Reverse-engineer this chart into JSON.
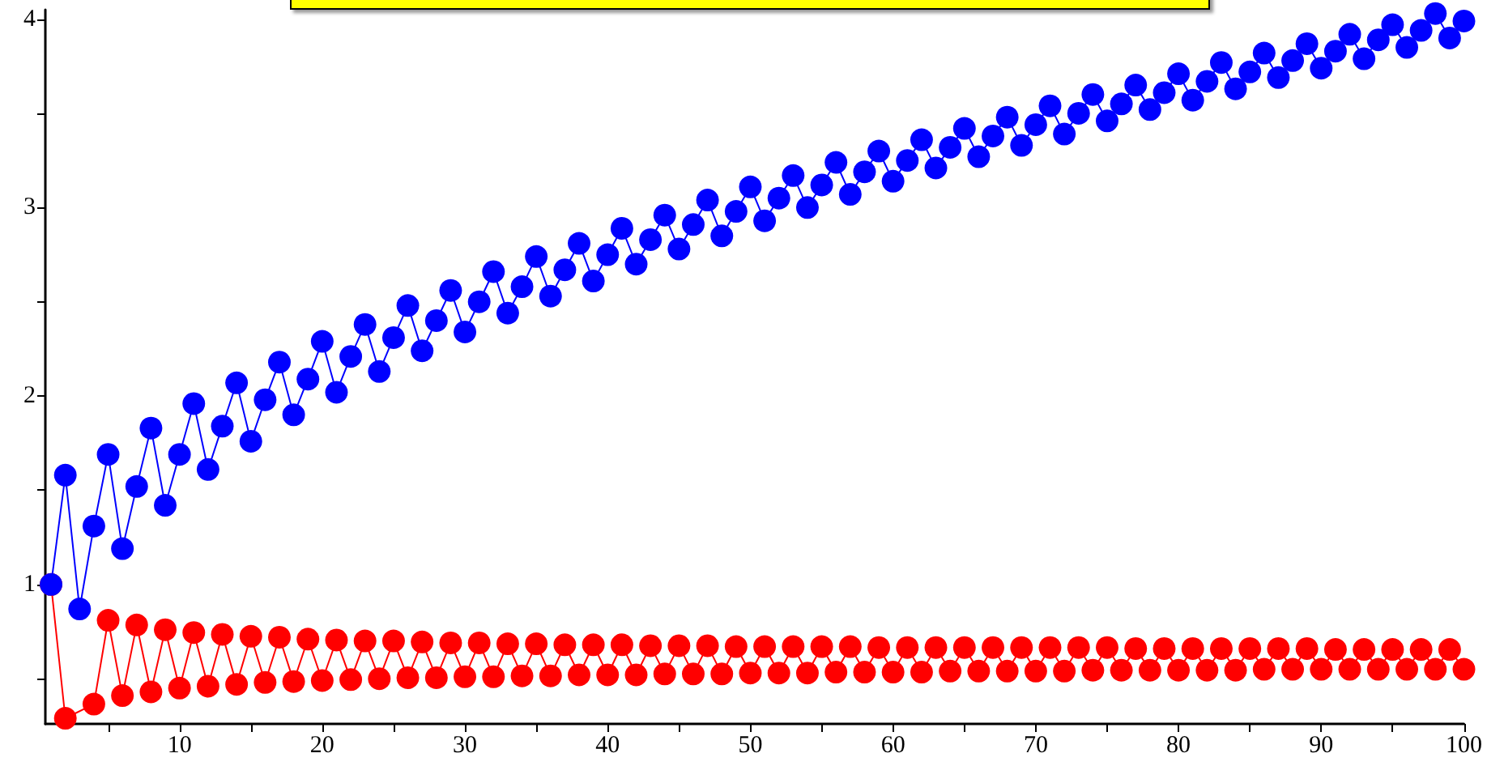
{
  "chart_data": {
    "type": "line",
    "marker": "circle",
    "line_style": "solid",
    "grid": false,
    "x": [
      1,
      2,
      3,
      4,
      5,
      6,
      7,
      8,
      9,
      10,
      11,
      12,
      13,
      14,
      15,
      16,
      17,
      18,
      19,
      20,
      21,
      22,
      23,
      24,
      25,
      26,
      27,
      28,
      29,
      30,
      31,
      32,
      33,
      34,
      35,
      36,
      37,
      38,
      39,
      40,
      41,
      42,
      43,
      44,
      45,
      46,
      47,
      48,
      49,
      50,
      51,
      52,
      53,
      54,
      55,
      56,
      57,
      58,
      59,
      60,
      61,
      62,
      63,
      64,
      65,
      66,
      67,
      68,
      69,
      70,
      71,
      72,
      73,
      74,
      75,
      76,
      77,
      78,
      79,
      80,
      81,
      82,
      83,
      84,
      85,
      86,
      87,
      88,
      89,
      90,
      91,
      92,
      93,
      94,
      95,
      96,
      97,
      98,
      99,
      100
    ],
    "xlim": [
      0.6,
      100
    ],
    "xticks": [
      {
        "value": 5,
        "label": null
      },
      10,
      {
        "value": 15,
        "label": null
      },
      20,
      {
        "value": 25,
        "label": null
      },
      30,
      {
        "value": 35,
        "label": null
      },
      40,
      {
        "value": 45,
        "label": null
      },
      50,
      {
        "value": 55,
        "label": null
      },
      60,
      {
        "value": 65,
        "label": null
      },
      70,
      {
        "value": 75,
        "label": null
      },
      80,
      {
        "value": 85,
        "label": null
      },
      90,
      {
        "value": 95,
        "label": null
      },
      100
    ],
    "ylim": [
      0.26,
      4.05
    ],
    "yticks": [
      {
        "value": 0.5,
        "label": null
      },
      1,
      {
        "value": 1.5,
        "label": null
      },
      2,
      {
        "value": 2.5,
        "label": null
      },
      3,
      {
        "value": 3.5,
        "label": null
      },
      4
    ],
    "series": [
      {
        "color": "#ff0000",
        "values": [
          1,
          0.29,
          null,
          0.365,
          0.81,
          0.41,
          0.785,
          0.43,
          0.76,
          0.45,
          0.745,
          0.46,
          0.735,
          0.47,
          0.725,
          0.48,
          0.72,
          0.485,
          0.71,
          0.49,
          0.705,
          0.495,
          0.7,
          0.5,
          0.7,
          0.505,
          0.695,
          0.505,
          0.69,
          0.51,
          0.69,
          0.51,
          0.685,
          0.515,
          0.685,
          0.515,
          0.68,
          0.52,
          0.68,
          0.52,
          0.68,
          0.52,
          0.675,
          0.525,
          0.675,
          0.525,
          0.675,
          0.525,
          0.67,
          0.53,
          0.67,
          0.53,
          0.67,
          0.53,
          0.67,
          0.535,
          0.67,
          0.535,
          0.665,
          0.535,
          0.665,
          0.535,
          0.665,
          0.54,
          0.665,
          0.54,
          0.665,
          0.54,
          0.665,
          0.54,
          0.665,
          0.54,
          0.665,
          0.545,
          0.665,
          0.545,
          0.66,
          0.545,
          0.66,
          0.545,
          0.66,
          0.545,
          0.66,
          0.545,
          0.66,
          0.55,
          0.66,
          0.55,
          0.66,
          0.55,
          0.655,
          0.55,
          0.655,
          0.55,
          0.655,
          0.55,
          0.655,
          0.55,
          0.655,
          0.55
        ]
      },
      {
        "color": "#0000ff",
        "values": [
          1.0,
          1.58,
          0.87,
          1.31,
          1.69,
          1.19,
          1.52,
          1.83,
          1.42,
          1.69,
          1.96,
          1.61,
          1.84,
          2.07,
          1.76,
          1.98,
          2.18,
          1.9,
          2.09,
          2.29,
          2.02,
          2.21,
          2.38,
          2.13,
          2.31,
          2.48,
          2.24,
          2.4,
          2.56,
          2.34,
          2.5,
          2.66,
          2.44,
          2.58,
          2.74,
          2.53,
          2.67,
          2.81,
          2.61,
          2.75,
          2.89,
          2.7,
          2.83,
          2.96,
          2.78,
          2.91,
          3.04,
          2.85,
          2.98,
          3.11,
          2.93,
          3.05,
          3.17,
          3.0,
          3.12,
          3.24,
          3.07,
          3.19,
          3.3,
          3.14,
          3.25,
          3.36,
          3.21,
          3.32,
          3.42,
          3.27,
          3.38,
          3.48,
          3.33,
          3.44,
          3.54,
          3.39,
          3.5,
          3.6,
          3.46,
          3.55,
          3.65,
          3.52,
          3.61,
          3.71,
          3.57,
          3.67,
          3.77,
          3.63,
          3.72,
          3.82,
          3.69,
          3.78,
          3.87,
          3.74,
          3.83,
          3.92,
          3.79,
          3.89,
          3.97,
          3.85,
          3.94,
          4.03,
          3.9,
          3.99
        ]
      }
    ]
  }
}
